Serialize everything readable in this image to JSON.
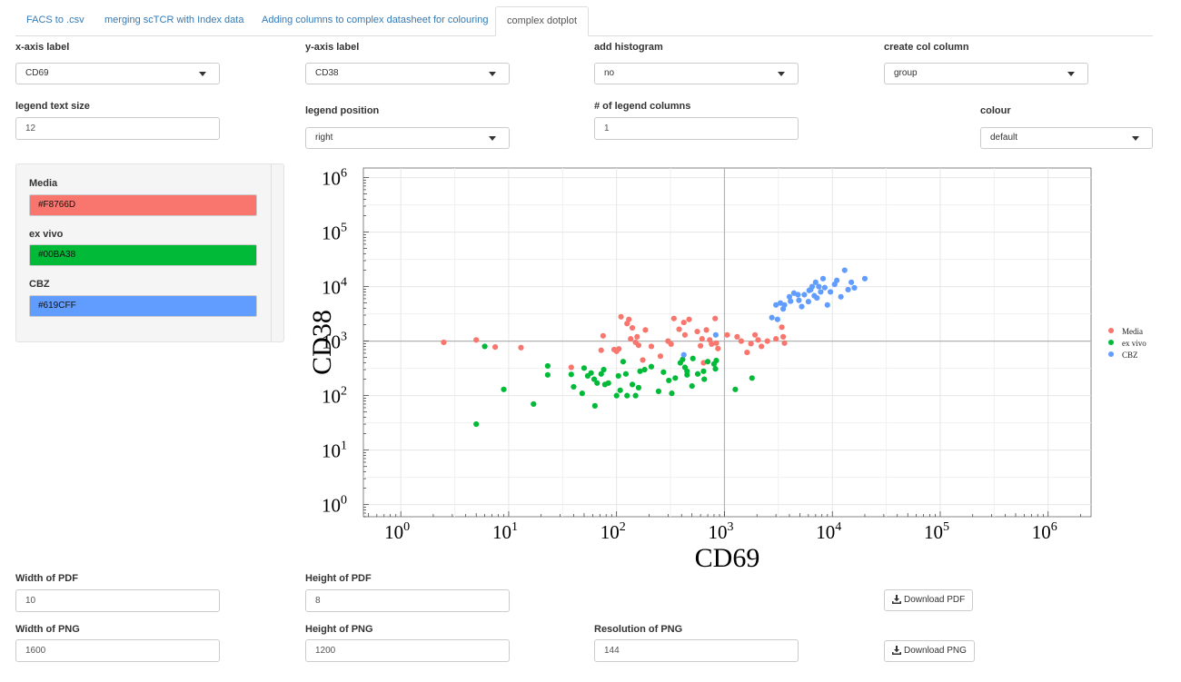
{
  "tabs": [
    "FACS to .csv",
    "merging scTCR with Index data",
    "Adding columns to complex datasheet for colouring",
    "complex dotplot"
  ],
  "controls": {
    "xaxis_label": "x-axis label",
    "xaxis_value": "CD69",
    "yaxis_label": "y-axis label",
    "yaxis_value": "CD38",
    "histogram_label": "add histogram",
    "histogram_value": "no",
    "colcolumn_label": "create col column",
    "colcolumn_value": "group",
    "legend_text_label": "legend text size",
    "legend_text_value": "12",
    "legend_pos_label": "legend position",
    "legend_pos_value": "right",
    "legend_cols_label": "# of legend columns",
    "legend_cols_value": "1",
    "colour_label": "colour",
    "colour_value": "default"
  },
  "colours": [
    {
      "name": "Media",
      "hex": "#F8766D"
    },
    {
      "name": "ex vivo",
      "hex": "#00BA38"
    },
    {
      "name": "CBZ",
      "hex": "#619CFF"
    }
  ],
  "export": {
    "pdf_width_label": "Width of PDF",
    "pdf_width_value": "10",
    "pdf_height_label": "Height of PDF",
    "pdf_height_value": "8",
    "download_pdf": "Download PDF",
    "png_width_label": "Width of PNG",
    "png_width_value": "1600",
    "png_height_label": "Height of PNG",
    "png_height_value": "1200",
    "png_res_label": "Resolution of PNG",
    "png_res_value": "144",
    "download_png": "Download PNG"
  },
  "icons": [
    "caret-down-icon",
    "download-icon"
  ],
  "chart_data": {
    "type": "scatter",
    "xlabel": "CD69",
    "ylabel": "CD38",
    "xscale": "log10",
    "yscale": "log10",
    "xlim": [
      0.45,
      2500000
    ],
    "ylim": [
      0.6,
      1500000
    ],
    "xticks": [
      "10^0",
      "10^1",
      "10^2",
      "10^3",
      "10^4",
      "10^5",
      "10^6"
    ],
    "yticks": [
      "10^0",
      "10^1",
      "10^2",
      "10^3",
      "10^4",
      "10^5",
      "10^6"
    ],
    "reference_lines": {
      "x": 1000,
      "y": 1000
    },
    "legend_position": "right",
    "series": [
      {
        "name": "Media",
        "color": "#F8766D",
        "points": [
          [
            2.5,
            950
          ],
          [
            5,
            1050
          ],
          [
            7.5,
            780
          ],
          [
            13,
            760
          ],
          [
            38,
            330
          ],
          [
            72,
            680
          ],
          [
            75,
            1250
          ],
          [
            95,
            700
          ],
          [
            105,
            720
          ],
          [
            110,
            2800
          ],
          [
            125,
            2100
          ],
          [
            130,
            2500
          ],
          [
            135,
            1100
          ],
          [
            140,
            1750
          ],
          [
            155,
            1200
          ],
          [
            160,
            840
          ],
          [
            175,
            450
          ],
          [
            185,
            1600
          ],
          [
            210,
            800
          ],
          [
            255,
            530
          ],
          [
            320,
            880
          ],
          [
            340,
            2600
          ],
          [
            380,
            1650
          ],
          [
            420,
            2200
          ],
          [
            430,
            1300
          ],
          [
            470,
            2500
          ],
          [
            560,
            1500
          ],
          [
            600,
            820
          ],
          [
            620,
            1100
          ],
          [
            640,
            400
          ],
          [
            730,
            1050
          ],
          [
            760,
            880
          ],
          [
            820,
            2600
          ],
          [
            840,
            920
          ],
          [
            870,
            730
          ],
          [
            1060,
            1300
          ],
          [
            1310,
            1200
          ],
          [
            1430,
            1000
          ],
          [
            1620,
            620
          ],
          [
            1760,
            900
          ],
          [
            1920,
            1300
          ],
          [
            2050,
            1050
          ],
          [
            2200,
            800
          ],
          [
            2500,
            1000
          ],
          [
            3000,
            1100
          ],
          [
            3400,
            1800
          ],
          [
            3500,
            1200
          ],
          [
            3600,
            920
          ],
          [
            680,
            1600
          ],
          [
            300,
            1000
          ],
          [
            150,
            950
          ],
          [
            100,
            650
          ]
        ]
      },
      {
        "name": "ex vivo",
        "color": "#00BA38",
        "points": [
          [
            5,
            30
          ],
          [
            6,
            800
          ],
          [
            9,
            130
          ],
          [
            17,
            70
          ],
          [
            23,
            350
          ],
          [
            23,
            240
          ],
          [
            38,
            245
          ],
          [
            40,
            145
          ],
          [
            48,
            110
          ],
          [
            50,
            320
          ],
          [
            54,
            230
          ],
          [
            58,
            260
          ],
          [
            62,
            200
          ],
          [
            63,
            65
          ],
          [
            66,
            170
          ],
          [
            72,
            250
          ],
          [
            76,
            300
          ],
          [
            78,
            160
          ],
          [
            84,
            170
          ],
          [
            100,
            100
          ],
          [
            104,
            230
          ],
          [
            108,
            125
          ],
          [
            115,
            420
          ],
          [
            122,
            250
          ],
          [
            125,
            100
          ],
          [
            140,
            160
          ],
          [
            150,
            100
          ],
          [
            160,
            140
          ],
          [
            165,
            280
          ],
          [
            182,
            300
          ],
          [
            210,
            340
          ],
          [
            245,
            120
          ],
          [
            272,
            270
          ],
          [
            305,
            190
          ],
          [
            325,
            110
          ],
          [
            350,
            210
          ],
          [
            390,
            400
          ],
          [
            410,
            460
          ],
          [
            450,
            240
          ],
          [
            450,
            280
          ],
          [
            500,
            150
          ],
          [
            510,
            480
          ],
          [
            565,
            250
          ],
          [
            640,
            280
          ],
          [
            650,
            200
          ],
          [
            700,
            420
          ],
          [
            800,
            380
          ],
          [
            825,
            310
          ],
          [
            840,
            440
          ],
          [
            1260,
            130
          ],
          [
            1800,
            210
          ],
          [
            430,
            330
          ]
        ]
      },
      {
        "name": "CBZ",
        "color": "#619CFF",
        "points": [
          [
            420,
            560
          ],
          [
            830,
            1300
          ],
          [
            2750,
            2700
          ],
          [
            3000,
            4600
          ],
          [
            3300,
            5000
          ],
          [
            3600,
            4600
          ],
          [
            4000,
            6500
          ],
          [
            4100,
            5400
          ],
          [
            4400,
            7600
          ],
          [
            4900,
            5600
          ],
          [
            5500,
            7100
          ],
          [
            6000,
            5300
          ],
          [
            6100,
            8500
          ],
          [
            6500,
            10000
          ],
          [
            6800,
            6800
          ],
          [
            7000,
            12000
          ],
          [
            7200,
            6200
          ],
          [
            7800,
            8000
          ],
          [
            8200,
            14000
          ],
          [
            8500,
            9600
          ],
          [
            9000,
            4600
          ],
          [
            9600,
            8000
          ],
          [
            10500,
            11000
          ],
          [
            12000,
            6500
          ],
          [
            13000,
            20000
          ],
          [
            15000,
            12000
          ],
          [
            16000,
            9500
          ],
          [
            20000,
            14000
          ],
          [
            3100,
            2500
          ],
          [
            3500,
            3900
          ],
          [
            4800,
            7100
          ],
          [
            6300,
            8800
          ],
          [
            7500,
            10000
          ],
          [
            11000,
            13000
          ],
          [
            5200,
            4300
          ],
          [
            14000,
            8800
          ]
        ]
      }
    ]
  }
}
